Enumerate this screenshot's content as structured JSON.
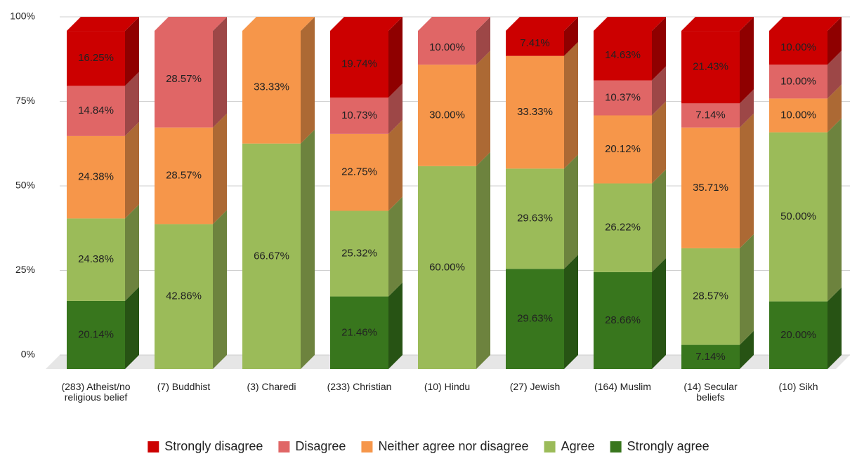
{
  "chart_data": {
    "type": "stacked_bar_3d",
    "categories": [
      "(283) Atheist/no religious belief",
      "(7) Buddhist",
      "(3) Charedi",
      "(233) Christian",
      "(10) Hindu",
      "(27) Jewish",
      "(164) Muslim",
      "(14) Secular beliefs",
      "(10) Sikh"
    ],
    "series": [
      {
        "name": "Strongly disagree",
        "color": "#cc0000",
        "values": [
          16.25,
          null,
          null,
          19.74,
          null,
          7.41,
          14.63,
          21.43,
          10.0
        ],
        "value_labels": [
          "16.25%",
          null,
          null,
          "19.74%",
          null,
          "7.41%",
          "14.63%",
          "21.43%",
          "10.00%"
        ]
      },
      {
        "name": "Disagree",
        "color": "#e06666",
        "values": [
          14.84,
          28.57,
          null,
          10.73,
          10.0,
          null,
          10.37,
          7.14,
          10.0
        ],
        "value_labels": [
          "14.84%",
          "28.57%",
          null,
          "10.73%",
          "10.00%",
          null,
          "10.37%",
          "7.14%",
          "10.00%"
        ]
      },
      {
        "name": "Neither agree nor disagree",
        "color": "#f6964a",
        "values": [
          24.38,
          28.57,
          33.33,
          22.75,
          30.0,
          33.33,
          20.12,
          35.71,
          10.0
        ],
        "value_labels": [
          "24.38%",
          "28.57%",
          "33.33%",
          "22.75%",
          "30.00%",
          "33.33%",
          "20.12%",
          "35.71%",
          "10.00%"
        ]
      },
      {
        "name": "Agree",
        "color": "#9bbb59",
        "values": [
          24.38,
          42.86,
          66.67,
          25.32,
          60.0,
          29.63,
          26.22,
          28.57,
          50.0
        ],
        "value_labels": [
          "24.38%",
          "42.86%",
          "66.67%",
          "25.32%",
          "60.00%",
          "29.63%",
          "26.22%",
          "28.57%",
          "50.00%"
        ]
      },
      {
        "name": "Strongly agree",
        "color": "#38761d",
        "values": [
          20.14,
          null,
          null,
          21.46,
          null,
          29.63,
          28.66,
          7.14,
          20.0
        ],
        "value_labels": [
          "20.14%",
          null,
          null,
          "21.46%",
          null,
          "29.63%",
          "28.66%",
          "7.14%",
          "20.00%"
        ]
      }
    ],
    "ylim": [
      0,
      100
    ],
    "yticks": [
      {
        "value": 0,
        "label": "0%"
      },
      {
        "value": 25,
        "label": "25%"
      },
      {
        "value": 50,
        "label": "50%"
      },
      {
        "value": 75,
        "label": "75%"
      },
      {
        "value": 100,
        "label": "100%"
      }
    ],
    "grid": true,
    "legend": "bottom"
  }
}
